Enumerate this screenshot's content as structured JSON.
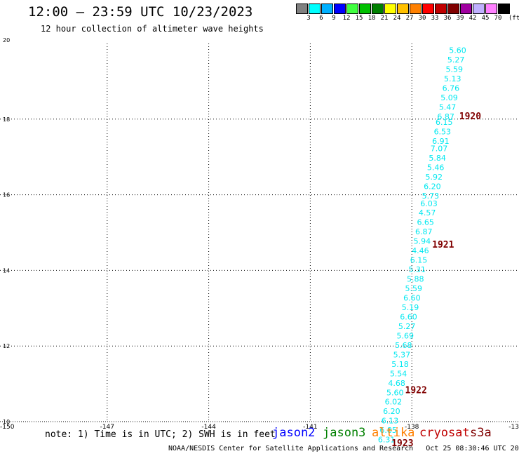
{
  "header": {
    "title": "12:00 – 23:59 UTC 10/23/2023",
    "subtitle": "12 hour collection of altimeter wave heights"
  },
  "color_scale": {
    "colors": [
      "#808080",
      "#00ffff",
      "#00b0ff",
      "#0000ff",
      "#40ff40",
      "#00c000",
      "#008000",
      "#ffff00",
      "#ffc000",
      "#ff8000",
      "#ff0000",
      "#c00000",
      "#800000",
      "#a000a0",
      "#c0b0ff",
      "#ff80ff",
      "#000000"
    ],
    "labels": [
      "3",
      "6",
      "9",
      "12",
      "15",
      "18",
      "21",
      "24",
      "27",
      "30",
      "33",
      "36",
      "39",
      "42",
      "45",
      "70"
    ],
    "unit": "(ft)"
  },
  "chart_data": {
    "type": "scatter",
    "x_ticks": [
      "-150",
      "-147",
      "-144",
      "-141",
      "-138",
      "-13"
    ],
    "y_ticks": [
      "10",
      "12",
      "14",
      "16",
      "18",
      "20"
    ],
    "xlim": [
      -150,
      -135
    ],
    "ylim": [
      10,
      20
    ],
    "grid": true,
    "point_color": "#00e8f0",
    "points": [
      {
        "x": -136.9,
        "y": 19.75,
        "label": "5.60"
      },
      {
        "x": -136.95,
        "y": 19.5,
        "label": "5.27"
      },
      {
        "x": -137.0,
        "y": 19.25,
        "label": "5.59"
      },
      {
        "x": -137.05,
        "y": 19.0,
        "label": "5.13"
      },
      {
        "x": -137.1,
        "y": 18.75,
        "label": "6.76"
      },
      {
        "x": -137.15,
        "y": 18.5,
        "label": "5.09"
      },
      {
        "x": -137.2,
        "y": 18.25,
        "label": "5.47"
      },
      {
        "x": -137.25,
        "y": 18.0,
        "label": "6.87"
      },
      {
        "x": -137.3,
        "y": 17.85,
        "label": "6.15"
      },
      {
        "x": -137.35,
        "y": 17.6,
        "label": "6.53"
      },
      {
        "x": -137.4,
        "y": 17.35,
        "label": "6.91"
      },
      {
        "x": -137.45,
        "y": 17.15,
        "label": "7.07"
      },
      {
        "x": -137.5,
        "y": 16.9,
        "label": "5.84"
      },
      {
        "x": -137.55,
        "y": 16.65,
        "label": "5.46"
      },
      {
        "x": -137.6,
        "y": 16.4,
        "label": "5.92"
      },
      {
        "x": -137.65,
        "y": 16.15,
        "label": "6.20"
      },
      {
        "x": -137.7,
        "y": 15.9,
        "label": "5.73"
      },
      {
        "x": -137.75,
        "y": 15.7,
        "label": "6.03"
      },
      {
        "x": -137.8,
        "y": 15.45,
        "label": "4.57"
      },
      {
        "x": -137.85,
        "y": 15.2,
        "label": "6.65"
      },
      {
        "x": -137.9,
        "y": 14.95,
        "label": "6.87"
      },
      {
        "x": -137.95,
        "y": 14.7,
        "label": "5.94"
      },
      {
        "x": -138.0,
        "y": 14.45,
        "label": "4.46"
      },
      {
        "x": -138.05,
        "y": 14.2,
        "label": "6.15"
      },
      {
        "x": -138.1,
        "y": 13.95,
        "label": "5.31"
      },
      {
        "x": -138.15,
        "y": 13.7,
        "label": "5.88"
      },
      {
        "x": -138.2,
        "y": 13.45,
        "label": "5.59"
      },
      {
        "x": -138.25,
        "y": 13.2,
        "label": "6.60"
      },
      {
        "x": -138.3,
        "y": 12.95,
        "label": "5.19"
      },
      {
        "x": -138.35,
        "y": 12.7,
        "label": "6.60"
      },
      {
        "x": -138.4,
        "y": 12.45,
        "label": "5.27"
      },
      {
        "x": -138.45,
        "y": 12.2,
        "label": "5.69"
      },
      {
        "x": -138.5,
        "y": 11.95,
        "label": "5.68"
      },
      {
        "x": -138.55,
        "y": 11.7,
        "label": "5.37"
      },
      {
        "x": -138.6,
        "y": 11.45,
        "label": "5.18"
      },
      {
        "x": -138.65,
        "y": 11.2,
        "label": "5.54"
      },
      {
        "x": -138.7,
        "y": 10.95,
        "label": "4.68"
      },
      {
        "x": -138.75,
        "y": 10.7,
        "label": "5.60"
      },
      {
        "x": -138.8,
        "y": 10.45,
        "label": "6.02"
      },
      {
        "x": -138.85,
        "y": 10.2,
        "label": "6.20"
      },
      {
        "x": -138.9,
        "y": 9.95,
        "label": "6.13"
      },
      {
        "x": -138.95,
        "y": 9.7,
        "label": "6.85"
      },
      {
        "x": -139.0,
        "y": 9.45,
        "label": "6.31"
      }
    ],
    "annotations": [
      {
        "text": "1920",
        "x": -136.6,
        "y": 18.0,
        "color": "#800000"
      },
      {
        "text": "1921",
        "x": -137.4,
        "y": 14.6,
        "color": "#800000"
      },
      {
        "text": "1922",
        "x": -138.2,
        "y": 10.75,
        "color": "#800000"
      },
      {
        "text": "1923",
        "x": -138.6,
        "y": 9.35,
        "color": "#800000"
      }
    ]
  },
  "footer": {
    "note": "note: 1) Time is in UTC; 2) SWH is in feet",
    "satellites": [
      {
        "name": "jason2",
        "color": "#0000ff"
      },
      {
        "name": "jason3",
        "color": "#008000"
      },
      {
        "name": "altika",
        "color": "#ff8000"
      },
      {
        "name": "cryosat",
        "color": "#c00000"
      },
      {
        "name": "s3a",
        "color": "#800000"
      }
    ],
    "credit": "NOAA/NESDIS Center for Satellite Applications and Research",
    "timestamp": "Oct 25 08:30:46 UTC 2023"
  }
}
